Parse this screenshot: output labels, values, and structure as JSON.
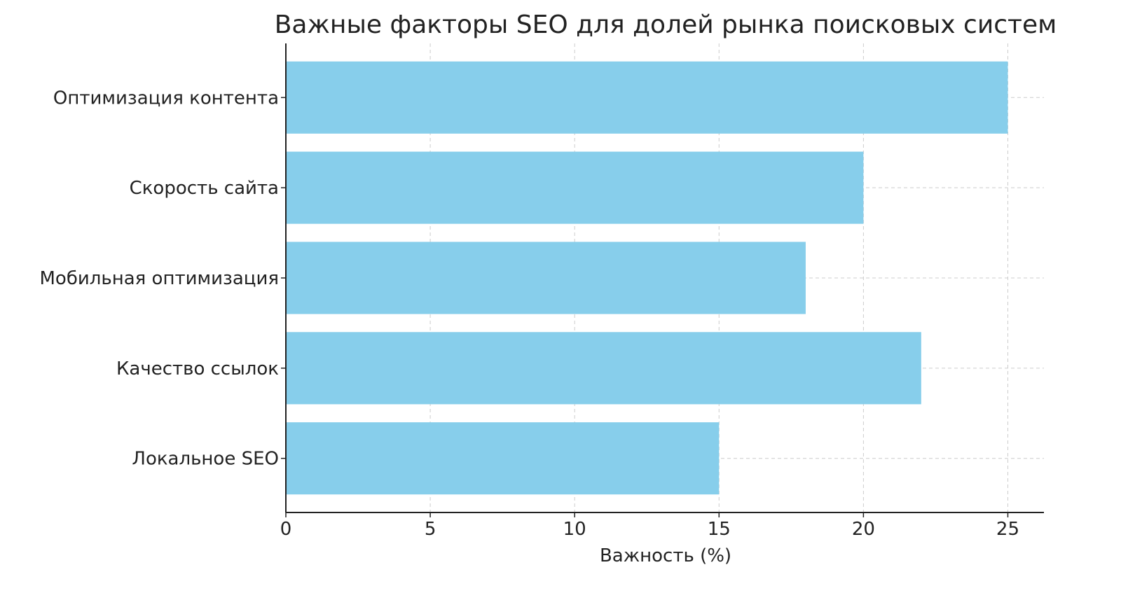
{
  "chart_data": {
    "type": "bar",
    "orientation": "horizontal",
    "title": "Важные факторы SEO для долей рынка поисковых систем",
    "xlabel": "Важность (%)",
    "ylabel": "",
    "categories": [
      "Оптимизация контента",
      "Скорость сайта",
      "Мобильная оптимизация",
      "Качество ссылок",
      "Локальное SEO"
    ],
    "values": [
      25,
      20,
      18,
      22,
      15
    ],
    "xlim": [
      0,
      26.25
    ],
    "xticks": [
      0,
      5,
      10,
      15,
      20,
      25
    ],
    "grid": true,
    "grid_style": "dashed",
    "bar_color": "#87CEEB"
  }
}
